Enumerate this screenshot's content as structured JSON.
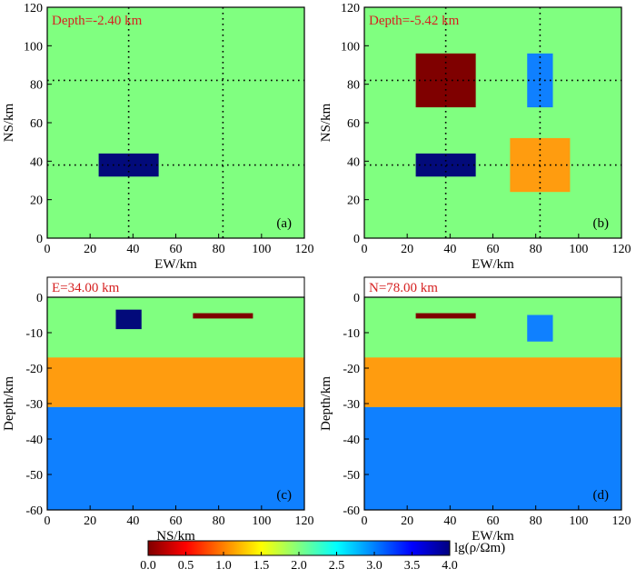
{
  "colors": {
    "background": "#80ff80",
    "frame": "#000000",
    "label_red": "#d62020"
  },
  "chart_data": [
    {
      "id": "a",
      "type": "heatmap",
      "panel_label": "(a)",
      "title": "Depth=-2.40 km",
      "xlabel": "EW/km",
      "ylabel": "NS/km",
      "xlim": [
        0,
        120
      ],
      "ylim": [
        0,
        120
      ],
      "xticks": [
        0,
        20,
        40,
        60,
        80,
        100,
        120
      ],
      "yticks": [
        0,
        20,
        40,
        60,
        80,
        100,
        120
      ],
      "background_value": 2.0,
      "background_color": "#80ff80",
      "grid_x": [
        38,
        82
      ],
      "grid_y": [
        38,
        82
      ],
      "blocks": [
        {
          "name": "blue-block",
          "x": [
            24,
            52
          ],
          "y": [
            32,
            44
          ],
          "value": 4.0,
          "color": "#020a7a"
        }
      ]
    },
    {
      "id": "b",
      "type": "heatmap",
      "panel_label": "(b)",
      "title": "Depth=-5.42 km",
      "xlabel": "EW/km",
      "ylabel": "NS/km",
      "xlim": [
        0,
        120
      ],
      "ylim": [
        0,
        120
      ],
      "xticks": [
        0,
        20,
        40,
        60,
        80,
        100,
        120
      ],
      "yticks": [
        0,
        20,
        40,
        60,
        80,
        100,
        120
      ],
      "background_value": 2.0,
      "background_color": "#80ff80",
      "grid_x": [
        38,
        82
      ],
      "grid_y": [
        38,
        82
      ],
      "blocks": [
        {
          "name": "darkred-block",
          "x": [
            24,
            52
          ],
          "y": [
            68,
            96
          ],
          "value": 0.0,
          "color": "#7f0000"
        },
        {
          "name": "lightblue-block",
          "x": [
            76,
            88
          ],
          "y": [
            68,
            96
          ],
          "value": 3.0,
          "color": "#0f80ff"
        },
        {
          "name": "navy-block",
          "x": [
            24,
            52
          ],
          "y": [
            32,
            44
          ],
          "value": 4.0,
          "color": "#020a7a"
        },
        {
          "name": "orange-block",
          "x": [
            68,
            96
          ],
          "y": [
            24,
            52
          ],
          "value": 1.0,
          "color": "#ff9c0f"
        }
      ]
    },
    {
      "id": "c",
      "type": "heatmap",
      "panel_label": "(c)",
      "title": "E=34.00 km",
      "xlabel": "NS/km",
      "ylabel": "Depth/km",
      "xlim": [
        0,
        120
      ],
      "ylim": [
        -60,
        0
      ],
      "xticks": [
        0,
        20,
        40,
        60,
        80,
        100,
        120
      ],
      "yticks": [
        0,
        -10,
        -20,
        -30,
        -40,
        -50,
        -60
      ],
      "background_value": 2.0,
      "background_color": "#80ff80",
      "grid_x": [],
      "grid_y": [],
      "blocks": [
        {
          "name": "orange-layer",
          "x": [
            0,
            120
          ],
          "y": [
            -31,
            -17
          ],
          "value": 1.0,
          "color": "#ff9c0f"
        },
        {
          "name": "blue-layer",
          "x": [
            0,
            120
          ],
          "y": [
            -60,
            -31
          ],
          "value": 3.0,
          "color": "#0f80ff"
        },
        {
          "name": "navy-block",
          "x": [
            32,
            44
          ],
          "y": [
            -9,
            -3.5
          ],
          "value": 4.0,
          "color": "#020a7a"
        },
        {
          "name": "darkred-block",
          "x": [
            68,
            96
          ],
          "y": [
            -6,
            -4.5
          ],
          "value": 0.0,
          "color": "#7f0000"
        }
      ]
    },
    {
      "id": "d",
      "type": "heatmap",
      "panel_label": "(d)",
      "title": "N=78.00 km",
      "xlabel": "EW/km",
      "ylabel": "Depth/km",
      "xlim": [
        0,
        120
      ],
      "ylim": [
        -60,
        0
      ],
      "xticks": [
        0,
        20,
        40,
        60,
        80,
        100,
        120
      ],
      "yticks": [
        0,
        -10,
        -20,
        -30,
        -40,
        -50,
        -60
      ],
      "background_value": 2.0,
      "background_color": "#80ff80",
      "grid_x": [],
      "grid_y": [],
      "blocks": [
        {
          "name": "orange-layer",
          "x": [
            0,
            120
          ],
          "y": [
            -31,
            -17
          ],
          "value": 1.0,
          "color": "#ff9c0f"
        },
        {
          "name": "blue-layer",
          "x": [
            0,
            120
          ],
          "y": [
            -60,
            -31
          ],
          "value": 3.0,
          "color": "#0f80ff"
        },
        {
          "name": "darkred-block",
          "x": [
            24,
            52
          ],
          "y": [
            -6,
            -4.5
          ],
          "value": 0.0,
          "color": "#7f0000"
        },
        {
          "name": "lightblue-block",
          "x": [
            76,
            88
          ],
          "y": [
            -12.5,
            -5
          ],
          "value": 3.0,
          "color": "#0f80ff"
        }
      ]
    }
  ],
  "colorbar": {
    "label": "lg(ρ/Ωm)",
    "range": [
      0.0,
      4.0
    ],
    "ticks": [
      "0.0",
      "0.5",
      "1.0",
      "1.5",
      "2.0",
      "2.5",
      "3.0",
      "3.5",
      "4.0"
    ],
    "stops": [
      "#7f0000",
      "#ff0000",
      "#ff8000",
      "#ffff00",
      "#80ff80",
      "#00ffff",
      "#0080ff",
      "#0000ff",
      "#00007f"
    ]
  }
}
